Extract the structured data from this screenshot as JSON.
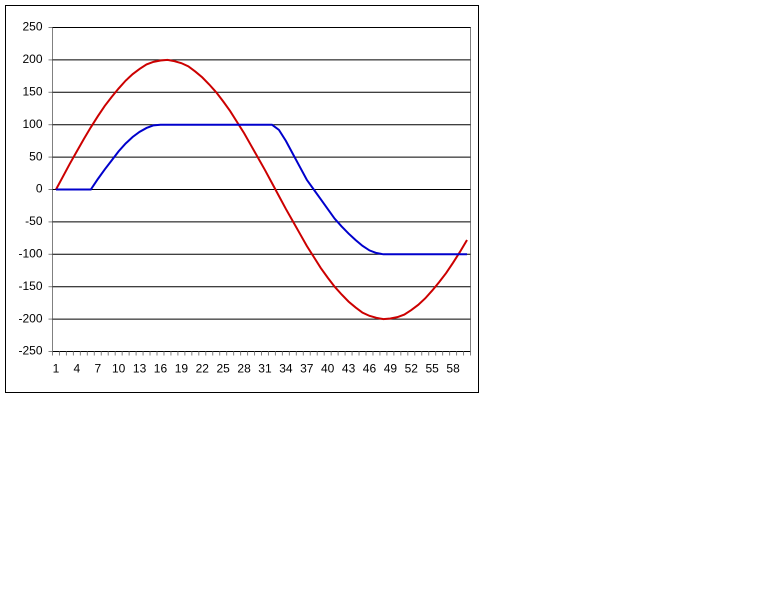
{
  "chart_data": {
    "type": "line",
    "categories": [
      "1",
      null,
      null,
      "4",
      null,
      null,
      "7",
      null,
      null,
      "10",
      null,
      null,
      "13",
      null,
      null,
      "16",
      null,
      null,
      "19",
      null,
      null,
      "22",
      null,
      null,
      "25",
      null,
      null,
      "28",
      null,
      null,
      "31",
      null,
      null,
      "34",
      null,
      null,
      "37",
      null,
      null,
      "40",
      null,
      null,
      "43",
      null,
      null,
      "46",
      null,
      null,
      "49",
      null,
      null,
      "52",
      null,
      null,
      "55",
      null,
      null,
      "58",
      null,
      null
    ],
    "series": [
      {
        "color": "#cc0000",
        "values": [
          0,
          20,
          40,
          59,
          78,
          96,
          113,
          129,
          143,
          156,
          168,
          178,
          186,
          193,
          197,
          199,
          200,
          198,
          195,
          190,
          182,
          173,
          162,
          150,
          136,
          121,
          104,
          87,
          68,
          49,
          30,
          10,
          -10,
          -30,
          -49,
          -68,
          -87,
          -104,
          -121,
          -136,
          -150,
          -162,
          -173,
          -182,
          -190,
          -195,
          -198,
          -200,
          -199,
          -197,
          -193,
          -186,
          -178,
          -168,
          -156,
          -143,
          -129,
          -113,
          -96,
          -78
        ]
      },
      {
        "color": "#0000cc",
        "values": [
          0,
          0,
          0,
          0,
          0,
          0,
          16,
          31,
          45,
          59,
          71,
          81,
          89,
          95,
          99,
          100,
          100,
          100,
          100,
          100,
          100,
          100,
          100,
          100,
          100,
          100,
          100,
          100,
          100,
          100,
          100,
          100,
          92,
          75,
          55,
          35,
          15,
          0,
          -15,
          -30,
          -45,
          -57,
          -68,
          -78,
          -87,
          -94,
          -98,
          -100,
          -100,
          -100,
          -100,
          -100,
          -100,
          -100,
          -100,
          -100,
          -100,
          -100,
          -100,
          -100
        ]
      }
    ],
    "ylim": [
      -250,
      250
    ],
    "yticks": [
      -250,
      -200,
      -150,
      -100,
      -50,
      0,
      50,
      100,
      150,
      200,
      250
    ],
    "grid": true
  }
}
